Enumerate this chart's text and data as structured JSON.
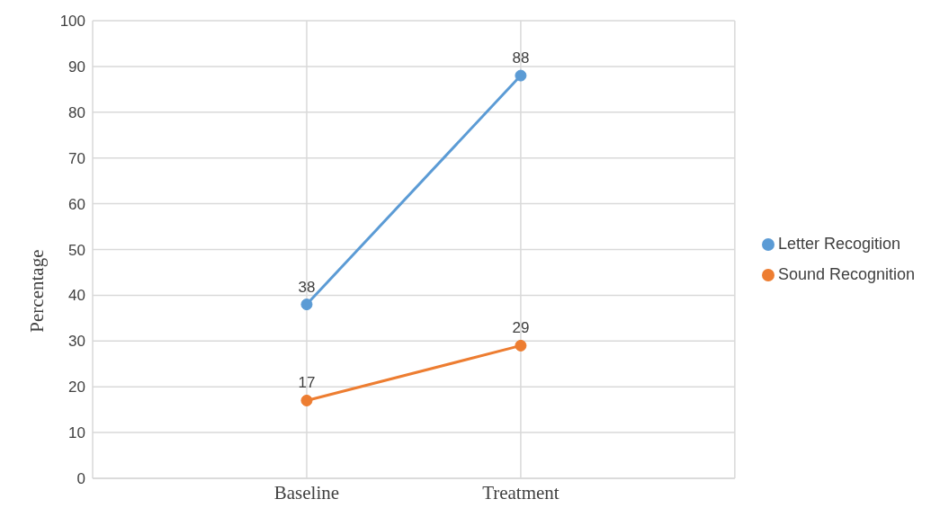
{
  "chart_data": {
    "type": "line",
    "ylabel": "Percentage",
    "categories": [
      null,
      "Baseline",
      "Treatment",
      null
    ],
    "series": [
      {
        "name": "Letter Recogition",
        "color": "#5b9bd5",
        "values": [
          null,
          38,
          88,
          null
        ]
      },
      {
        "name": "Sound Recognition",
        "color": "#ed7d31",
        "values": [
          null,
          17,
          29,
          null
        ]
      }
    ],
    "ylim": [
      0,
      100
    ],
    "yticks": [
      0,
      10,
      20,
      30,
      40,
      50,
      60,
      70,
      80,
      90,
      100
    ],
    "grid": true,
    "legend": "right",
    "marker": "circle",
    "data_labels": true
  }
}
